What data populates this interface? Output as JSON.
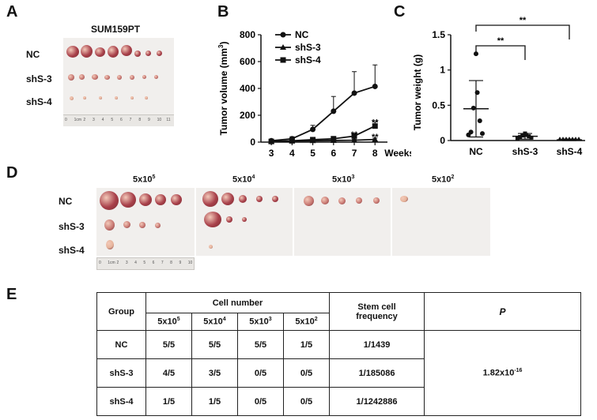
{
  "panels": {
    "a": {
      "label": "A",
      "title": "SUM159PT",
      "rows": [
        "NC",
        "shS-3",
        "shS-4"
      ],
      "ruler_ticks": [
        "0",
        "1cm",
        "2",
        "3",
        "4",
        "5",
        "6",
        "7",
        "8",
        "9",
        "10",
        "11"
      ]
    },
    "b": {
      "label": "B"
    },
    "c": {
      "label": "C"
    },
    "d": {
      "label": "D",
      "cols": [
        {
          "base": "5x10",
          "exp": "5"
        },
        {
          "base": "5x10",
          "exp": "4"
        },
        {
          "base": "5x10",
          "exp": "3"
        },
        {
          "base": "5x10",
          "exp": "2"
        }
      ],
      "rows": [
        "NC",
        "shS-3",
        "shS-4"
      ],
      "ruler_ticks": [
        "0",
        "1cm",
        "2",
        "3",
        "4",
        "5",
        "6",
        "7",
        "8",
        "9",
        "10"
      ]
    },
    "e": {
      "label": "E"
    }
  },
  "chart_data": [
    {
      "type": "line",
      "ylabel_base": "Tumor volume (mm",
      "ylabel_exp": "3",
      "ylabel_end": ")",
      "xlabel": "Weeks",
      "x": [
        3,
        4,
        5,
        6,
        7,
        8
      ],
      "ylim": [
        0,
        800
      ],
      "yticks": [
        0,
        200,
        400,
        600,
        800
      ],
      "series": [
        {
          "name": "NC",
          "marker": "circle",
          "values": [
            10,
            25,
            95,
            230,
            365,
            415
          ],
          "err": [
            5,
            15,
            30,
            110,
            160,
            160
          ]
        },
        {
          "name": "shS-3",
          "marker": "triangle",
          "values": [
            5,
            8,
            10,
            12,
            14,
            20
          ],
          "err": [
            2,
            3,
            4,
            4,
            6,
            10
          ]
        },
        {
          "name": "shS-4",
          "marker": "square",
          "values": [
            5,
            10,
            18,
            25,
            45,
            120
          ],
          "err": [
            2,
            4,
            6,
            8,
            15,
            30
          ]
        }
      ],
      "annotations": [
        {
          "x": 7,
          "y": 60,
          "text": "**"
        },
        {
          "x": 8,
          "y": 150,
          "text": "**"
        },
        {
          "x": 8,
          "y": 40,
          "text": "**"
        }
      ]
    },
    {
      "type": "scatter",
      "ylabel": "Tumor weight (g)",
      "categories": [
        "NC",
        "shS-3",
        "shS-4"
      ],
      "ylim": [
        0,
        1.5
      ],
      "yticks": [
        "0",
        "0.5",
        "1",
        "1.5"
      ],
      "yticks_values": [
        0,
        0.5,
        1,
        1.5
      ],
      "points": [
        [
          1.23,
          0.68,
          0.46,
          0.28,
          0.12,
          0.1,
          0.08
        ],
        [
          0.1,
          0.08,
          0.07,
          0.06,
          0.05,
          0.04,
          0.03
        ],
        [
          0.01,
          0.01,
          0.01,
          0.01,
          0.01,
          0.01,
          0.01
        ]
      ],
      "mean": [
        0.45,
        0.06,
        0.01
      ],
      "sd_upper": [
        0.85,
        0.1,
        0.02
      ],
      "sd_lower": [
        0.05,
        0.02,
        0.0
      ],
      "significance": [
        {
          "from": 0,
          "to": 1,
          "text": "**"
        },
        {
          "from": 0,
          "to": 2,
          "text": "**"
        }
      ]
    }
  ],
  "table": {
    "headers": {
      "group": "Group",
      "cell_number": "Cell number",
      "freq": "Stem cell frequency",
      "p": "P"
    },
    "subheaders": [
      {
        "base": "5x10",
        "exp": "5"
      },
      {
        "base": "5x10",
        "exp": "4"
      },
      {
        "base": "5x10",
        "exp": "3"
      },
      {
        "base": "5x10",
        "exp": "2"
      }
    ],
    "rows": [
      {
        "group": "NC",
        "c1": "5/5",
        "c2": "5/5",
        "c3": "5/5",
        "c4": "1/5",
        "freq": "1/1439"
      },
      {
        "group": "shS-3",
        "c1": "4/5",
        "c2": "3/5",
        "c3": "0/5",
        "c4": "0/5",
        "freq": "1/185086"
      },
      {
        "group": "shS-4",
        "c1": "1/5",
        "c2": "1/5",
        "c3": "0/5",
        "c4": "0/5",
        "freq": "1/1242886"
      }
    ],
    "p_value": {
      "base": "1.82x10",
      "exp": "-16"
    }
  },
  "colors": {
    "tumor_dark": "#a8404a",
    "tumor_mid": "#c97a74",
    "tumor_light": "#e6b49b",
    "tumor_pale": "#efcdb5",
    "photo_bg": "#f1efed",
    "axis": "#111111"
  }
}
